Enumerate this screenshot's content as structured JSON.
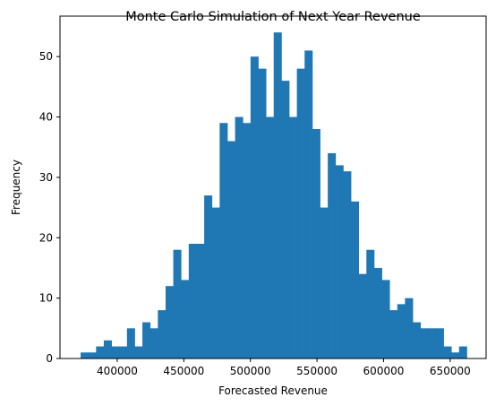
{
  "chart_data": {
    "type": "bar",
    "title": "Monte Carlo Simulation of Next Year Revenue",
    "xlabel": "Forecasted Revenue",
    "ylabel": "Frequency",
    "xlim": [
      357000,
      677000
    ],
    "ylim": [
      0,
      56.7
    ],
    "x_ticks": [
      400000,
      450000,
      500000,
      550000,
      600000,
      650000
    ],
    "y_ticks": [
      0,
      10,
      20,
      30,
      40,
      50
    ],
    "bin_start": 372500,
    "bin_width": 5800,
    "values": [
      1,
      1,
      2,
      3,
      2,
      2,
      5,
      2,
      6,
      5,
      8,
      12,
      18,
      13,
      19,
      19,
      27,
      25,
      39,
      36,
      40,
      39,
      50,
      48,
      40,
      54,
      46,
      40,
      48,
      51,
      38,
      25,
      34,
      32,
      31,
      26,
      14,
      18,
      15,
      13,
      8,
      9,
      10,
      6,
      5,
      5,
      5,
      2,
      1,
      2
    ],
    "bar_color": "#1f77b4",
    "grid": false,
    "legend": "none"
  }
}
